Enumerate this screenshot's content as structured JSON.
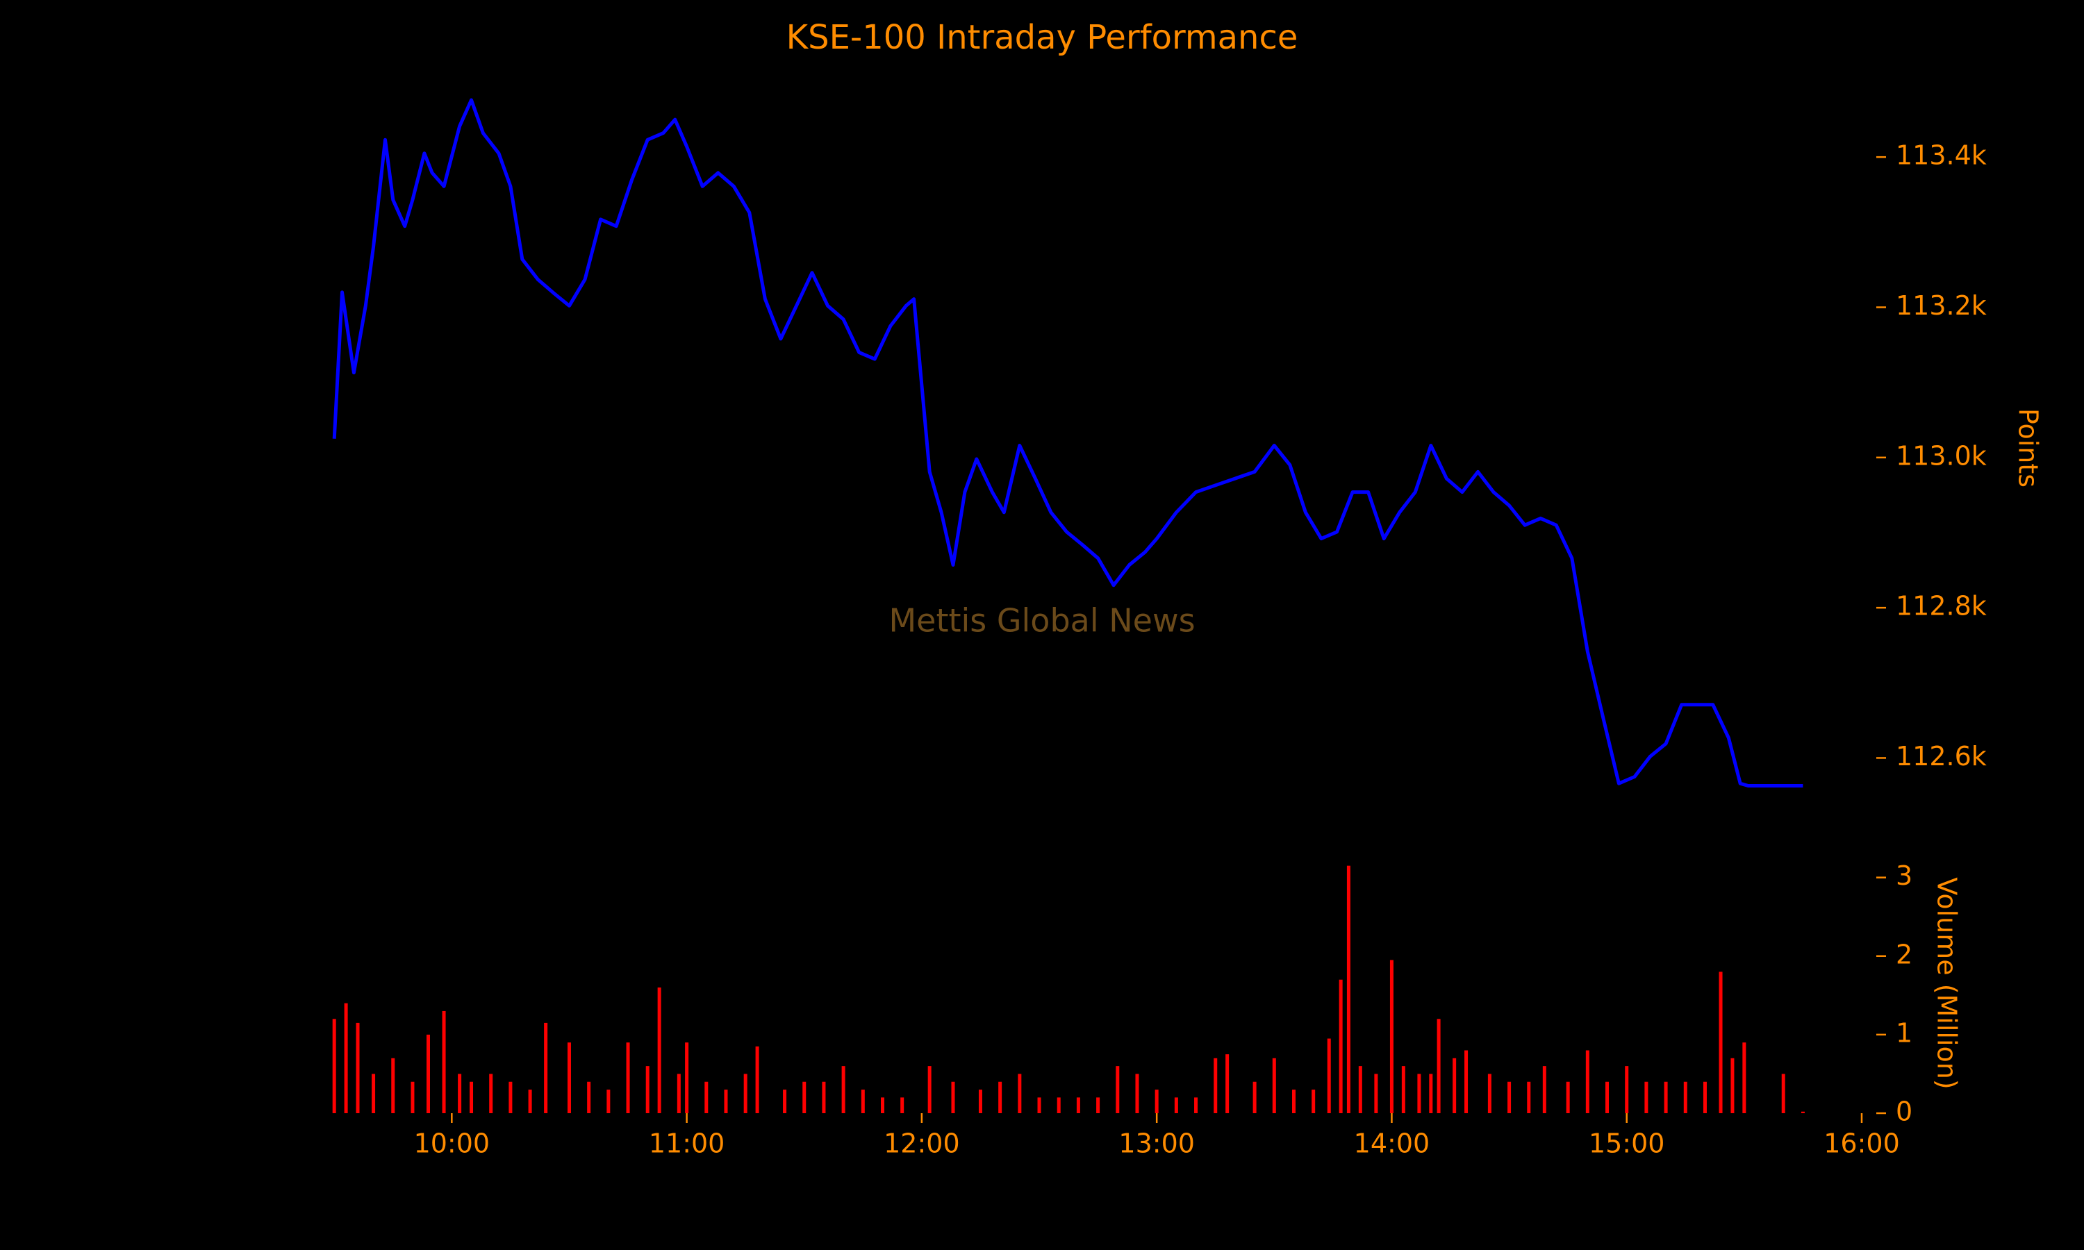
{
  "chart_data": [
    {
      "type": "line",
      "title": "KSE-100 Intraday Performance",
      "ylabel": "Points",
      "watermark": "Mettis Global News",
      "color": "#0000ff",
      "x": [
        "09:30",
        "09:32",
        "09:35",
        "09:38",
        "09:40",
        "09:43",
        "09:45",
        "09:48",
        "09:50",
        "09:53",
        "09:55",
        "09:58",
        "10:02",
        "10:05",
        "10:08",
        "10:12",
        "10:15",
        "10:18",
        "10:22",
        "10:26",
        "10:30",
        "10:34",
        "10:38",
        "10:42",
        "10:46",
        "10:50",
        "10:54",
        "10:57",
        "11:00",
        "11:04",
        "11:08",
        "11:12",
        "11:16",
        "11:20",
        "11:24",
        "11:28",
        "11:32",
        "11:36",
        "11:40",
        "11:44",
        "11:48",
        "11:52",
        "11:56",
        "11:58",
        "12:02",
        "12:05",
        "12:08",
        "12:11",
        "12:14",
        "12:18",
        "12:21",
        "12:25",
        "12:29",
        "12:33",
        "12:37",
        "12:41",
        "12:45",
        "12:49",
        "12:53",
        "12:57",
        "13:00",
        "13:05",
        "13:10",
        "13:15",
        "13:20",
        "13:25",
        "13:30",
        "13:34",
        "13:38",
        "13:42",
        "13:46",
        "13:50",
        "13:54",
        "13:58",
        "14:02",
        "14:06",
        "14:10",
        "14:14",
        "14:18",
        "14:22",
        "14:26",
        "14:30",
        "14:34",
        "14:38",
        "14:42",
        "14:46",
        "14:50",
        "14:54",
        "14:58",
        "15:02",
        "15:06",
        "15:10",
        "15:14",
        "15:18",
        "15:22",
        "15:26",
        "15:29",
        "15:31",
        "15:45"
      ],
      "values": [
        113025,
        113220,
        113113,
        113202,
        113281,
        113423,
        113343,
        113308,
        113343,
        113405,
        113379,
        113361,
        113441,
        113476,
        113432,
        113405,
        113361,
        113264,
        113237,
        113219,
        113202,
        113237,
        113317,
        113308,
        113370,
        113423,
        113432,
        113450,
        113414,
        113361,
        113379,
        113361,
        113326,
        113211,
        113158,
        113202,
        113246,
        113202,
        113184,
        113140,
        113131,
        113175,
        113202,
        113211,
        112981,
        112927,
        112857,
        112954,
        112998,
        112954,
        112927,
        113016,
        112972,
        112927,
        112901,
        112884,
        112866,
        112830,
        112857,
        112874,
        112892,
        112927,
        112954,
        112963,
        112972,
        112981,
        113016,
        112990,
        112927,
        112892,
        112901,
        112954,
        112954,
        112892,
        112927,
        112954,
        113016,
        112972,
        112954,
        112981,
        112954,
        112936,
        112910,
        112919,
        112910,
        112866,
        112742,
        112653,
        112566,
        112575,
        112602,
        112619,
        112671,
        112671,
        112671,
        112627,
        112566,
        112563,
        112563
      ],
      "xlim": [
        "09:25",
        "16:00"
      ],
      "ylim": [
        112520,
        113500
      ],
      "yticks": [
        {
          "value": 112600,
          "label": "112.6k"
        },
        {
          "value": 112800,
          "label": "112.8k"
        },
        {
          "value": 113000,
          "label": "113.0k"
        },
        {
          "value": 113200,
          "label": "113.2k"
        },
        {
          "value": 113400,
          "label": "113.4k"
        }
      ]
    },
    {
      "type": "bar",
      "ylabel": "Volume (Million)",
      "color": "#ff0000",
      "x": [
        "09:30",
        "09:33",
        "09:36",
        "09:40",
        "09:45",
        "09:50",
        "09:54",
        "09:58",
        "10:02",
        "10:05",
        "10:10",
        "10:15",
        "10:20",
        "10:24",
        "10:30",
        "10:35",
        "10:40",
        "10:45",
        "10:50",
        "10:53",
        "10:58",
        "11:00",
        "11:05",
        "11:10",
        "11:15",
        "11:18",
        "11:25",
        "11:30",
        "11:35",
        "11:40",
        "11:45",
        "11:50",
        "11:55",
        "12:02",
        "12:08",
        "12:15",
        "12:20",
        "12:25",
        "12:30",
        "12:35",
        "12:40",
        "12:45",
        "12:50",
        "12:55",
        "13:00",
        "13:05",
        "13:10",
        "13:15",
        "13:18",
        "13:25",
        "13:30",
        "13:35",
        "13:40",
        "13:44",
        "13:47",
        "13:49",
        "13:52",
        "13:56",
        "14:00",
        "14:03",
        "14:07",
        "14:10",
        "14:12",
        "14:16",
        "14:19",
        "14:25",
        "14:30",
        "14:35",
        "14:39",
        "14:45",
        "14:50",
        "14:55",
        "15:00",
        "15:05",
        "15:10",
        "15:15",
        "15:20",
        "15:24",
        "15:27",
        "15:30",
        "15:40",
        "15:45"
      ],
      "values": [
        1.2,
        1.4,
        1.15,
        0.5,
        0.7,
        0.4,
        1.0,
        1.3,
        0.5,
        0.4,
        0.5,
        0.4,
        0.3,
        1.15,
        0.9,
        0.4,
        0.3,
        0.9,
        0.6,
        1.6,
        0.5,
        0.9,
        0.4,
        0.3,
        0.5,
        0.85,
        0.3,
        0.4,
        0.4,
        0.6,
        0.3,
        0.2,
        0.2,
        0.6,
        0.4,
        0.3,
        0.4,
        0.5,
        0.2,
        0.2,
        0.2,
        0.2,
        0.6,
        0.5,
        0.3,
        0.2,
        0.2,
        0.7,
        0.75,
        0.4,
        0.7,
        0.3,
        0.3,
        0.95,
        1.7,
        3.15,
        0.6,
        0.5,
        1.95,
        0.6,
        0.5,
        0.5,
        1.2,
        0.7,
        0.8,
        0.5,
        0.4,
        0.4,
        0.6,
        0.4,
        0.8,
        0.4,
        0.6,
        0.4,
        0.4,
        0.4,
        0.4,
        1.8,
        0.7,
        0.9,
        0.5,
        0.02
      ],
      "xlim": [
        "09:25",
        "16:00"
      ],
      "ylim": [
        0,
        3.2
      ],
      "yticks": [
        0,
        1,
        2,
        3
      ],
      "xticks": [
        "10:00",
        "11:00",
        "12:00",
        "13:00",
        "14:00",
        "15:00",
        "16:00"
      ]
    }
  ]
}
